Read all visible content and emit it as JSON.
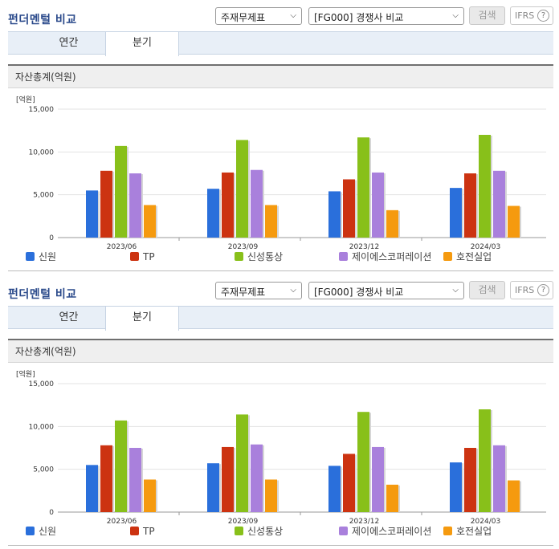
{
  "panels": [
    {
      "title": "펀더멘털 비교",
      "select1": "주재무제표",
      "select2": "[FG000] 경쟁사 비교",
      "search_label": "검색",
      "ifrs_label": "IFRS",
      "ifrs_help": "?",
      "tabs": [
        "연간",
        "분기"
      ],
      "active_tab": "분기",
      "section_title": "자산총계(억원)",
      "unit_label": "[억원]"
    },
    {
      "title": "펀더멘털 비교",
      "select1": "주재무제표",
      "select2": "[FG000] 경쟁사 비교",
      "search_label": "검색",
      "ifrs_label": "IFRS",
      "ifrs_help": "?",
      "tabs": [
        "연간",
        "분기"
      ],
      "active_tab": "분기",
      "section_title": "자산총계(억원)",
      "unit_label": "[억원]"
    }
  ],
  "chart_data": [
    {
      "type": "bar",
      "title": "자산총계(억원)",
      "ylabel": "[억원]",
      "ylim": [
        0,
        15000
      ],
      "yticks": [
        "0",
        "5,000",
        "10,000",
        "15,000"
      ],
      "categories": [
        "2023/06",
        "2023/09",
        "2023/12",
        "2024/03"
      ],
      "legend_position": "bottom",
      "series": [
        {
          "name": "신원",
          "color": "#2a6fdb",
          "values": [
            5500,
            5700,
            5400,
            5800
          ]
        },
        {
          "name": "TP",
          "color": "#cc3311",
          "values": [
            7800,
            7600,
            6800,
            7500
          ]
        },
        {
          "name": "신성통상",
          "color": "#88c01a",
          "values": [
            10700,
            11400,
            11700,
            12000
          ]
        },
        {
          "name": "제이에스코퍼레이션",
          "color": "#a980dc",
          "values": [
            7500,
            7900,
            7600,
            7800
          ]
        },
        {
          "name": "호전실업",
          "color": "#f59a0f",
          "values": [
            3800,
            3800,
            3200,
            3700
          ]
        }
      ]
    },
    {
      "type": "bar",
      "title": "자산총계(억원)",
      "ylabel": "[억원]",
      "ylim": [
        0,
        15000
      ],
      "yticks": [
        "0",
        "5,000",
        "10,000",
        "15,000"
      ],
      "categories": [
        "2023/06",
        "2023/09",
        "2023/12",
        "2024/03"
      ],
      "legend_position": "bottom",
      "series": [
        {
          "name": "신원",
          "color": "#2a6fdb",
          "values": [
            5500,
            5700,
            5400,
            5800
          ]
        },
        {
          "name": "TP",
          "color": "#cc3311",
          "values": [
            7800,
            7600,
            6800,
            7500
          ]
        },
        {
          "name": "신성통상",
          "color": "#88c01a",
          "values": [
            10700,
            11400,
            11700,
            12000
          ]
        },
        {
          "name": "제이에스코퍼레이션",
          "color": "#a980dc",
          "values": [
            7500,
            7900,
            7600,
            7800
          ]
        },
        {
          "name": "호전실업",
          "color": "#f59a0f",
          "values": [
            3800,
            3800,
            3200,
            3700
          ]
        }
      ]
    }
  ]
}
